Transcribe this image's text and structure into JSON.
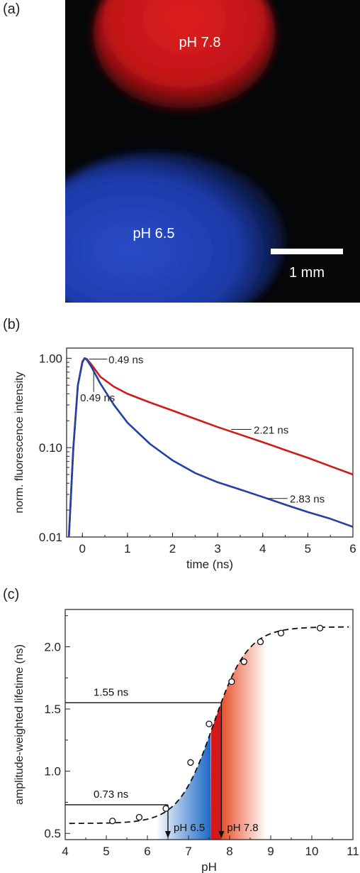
{
  "panels": {
    "a": "(a)",
    "b": "(b)",
    "c": "(c)"
  },
  "photo": {
    "top_label": "pH 7.8",
    "bottom_label": "pH 6.5",
    "scale_bar_label": "1 mm",
    "colors": {
      "red": "#d01818",
      "blue": "#1f3fb8"
    }
  },
  "chart_data": [
    {
      "type": "line",
      "xlabel": "time (ns)",
      "ylabel": "norm. fluorescence intensity",
      "xlim": [
        -0.35,
        6
      ],
      "ylim": [
        0.01,
        1.3
      ],
      "yscale": "log",
      "x_ticks": [
        "0",
        "1",
        "2",
        "3",
        "4",
        "5",
        "6"
      ],
      "y_ticks": [
        "0.01",
        "0.10",
        "1.00"
      ],
      "series": [
        {
          "color": "#d21a1a",
          "x": [
            -0.3,
            -0.2,
            -0.1,
            0.0,
            0.05,
            0.1,
            0.2,
            0.4,
            0.7,
            1.0,
            1.5,
            2.0,
            2.5,
            3.0,
            3.5,
            4.0,
            4.5,
            5.0,
            5.5,
            6.0
          ],
          "y": [
            0.01,
            0.1,
            0.5,
            0.92,
            1.0,
            0.98,
            0.85,
            0.62,
            0.48,
            0.4,
            0.32,
            0.26,
            0.21,
            0.17,
            0.14,
            0.115,
            0.094,
            0.077,
            0.062,
            0.05
          ]
        },
        {
          "color": "#2140a8",
          "x": [
            -0.3,
            -0.2,
            -0.1,
            0.0,
            0.05,
            0.1,
            0.2,
            0.4,
            0.7,
            1.0,
            1.5,
            2.0,
            2.5,
            3.0,
            3.5,
            4.0,
            4.5,
            5.0,
            5.5,
            6.0
          ],
          "y": [
            0.01,
            0.1,
            0.5,
            0.9,
            1.0,
            0.96,
            0.8,
            0.52,
            0.3,
            0.19,
            0.11,
            0.072,
            0.052,
            0.041,
            0.034,
            0.028,
            0.023,
            0.019,
            0.016,
            0.013
          ]
        }
      ],
      "annotations": [
        {
          "text": "0.49 ns",
          "x": 0.15,
          "y": 0.98,
          "series": 0
        },
        {
          "text": "0.49 ns",
          "x": 0.35,
          "y": 0.6,
          "series": 1
        },
        {
          "text": "2.21 ns",
          "x": 3.3,
          "y": 0.16,
          "series": 0
        },
        {
          "text": "2.83 ns",
          "x": 4.1,
          "y": 0.027,
          "series": 1
        }
      ]
    },
    {
      "type": "scatter",
      "xlabel": "pH",
      "ylabel": "amplitude-weighted lifetime (ns)",
      "xlim": [
        4,
        11
      ],
      "ylim": [
        0.45,
        2.3
      ],
      "x_ticks": [
        "4",
        "5",
        "6",
        "7",
        "8",
        "9",
        "10",
        "11"
      ],
      "y_ticks": [
        "0.5",
        "1.0",
        "1.5",
        "2.0"
      ],
      "points": {
        "x": [
          5.15,
          5.8,
          6.45,
          7.05,
          7.5,
          8.05,
          8.35,
          8.75,
          9.25,
          10.2
        ],
        "y": [
          0.6,
          0.63,
          0.7,
          1.07,
          1.38,
          1.72,
          1.88,
          2.04,
          2.11,
          2.15
        ]
      },
      "fit_curve": "sigmoid",
      "fit": {
        "base": 0.58,
        "top": 2.16,
        "pKa": 7.6,
        "slope": 0.42
      },
      "lookups": [
        {
          "label": "0.73 ns",
          "y": 0.73,
          "x": 6.5,
          "arrow_label": "pH 6.5"
        },
        {
          "label": "1.55 ns",
          "y": 1.55,
          "x": 7.8,
          "arrow_label": "pH 7.8"
        }
      ],
      "shading": [
        {
          "from": 6.2,
          "to": 7.55,
          "color": "#1b67c6"
        },
        {
          "from": 7.55,
          "to": 7.8,
          "color": "#d21a1a"
        },
        {
          "from": 7.8,
          "to": 8.9,
          "color": "#e8502a"
        }
      ]
    }
  ]
}
